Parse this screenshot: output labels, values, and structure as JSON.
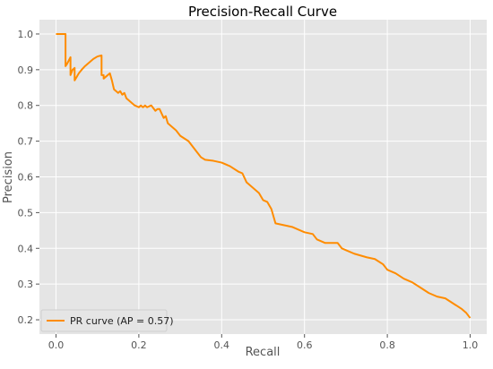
{
  "chart_data": {
    "type": "line",
    "title": "Precision-Recall Curve",
    "xlabel": "Recall",
    "ylabel": "Precision",
    "xlim": [
      -0.04,
      1.04
    ],
    "ylim": [
      0.16,
      1.04
    ],
    "xticks": [
      0.0,
      0.2,
      0.4,
      0.6,
      0.8,
      1.0
    ],
    "xtick_labels": [
      "0.0",
      "0.2",
      "0.4",
      "0.6",
      "0.8",
      "1.0"
    ],
    "yticks": [
      0.2,
      0.3,
      0.4,
      0.5,
      0.6,
      0.7,
      0.8,
      0.9,
      1.0
    ],
    "ytick_labels": [
      "0.2",
      "0.3",
      "0.4",
      "0.5",
      "0.6",
      "0.7",
      "0.8",
      "0.9",
      "1.0"
    ],
    "grid": true,
    "legend_position": "lower-left",
    "colors": {
      "series": "#ff8c00",
      "plot_background": "#e5e5e5",
      "grid": "#ffffff",
      "text": "#555555",
      "title": "#000000"
    },
    "series": [
      {
        "name": "PR curve (AP = 0.57)",
        "x": [
          0.0,
          0.023,
          0.023,
          0.026,
          0.035,
          0.035,
          0.04,
          0.045,
          0.045,
          0.05,
          0.055,
          0.062,
          0.07,
          0.08,
          0.09,
          0.1,
          0.11,
          0.11,
          0.115,
          0.115,
          0.12,
          0.13,
          0.135,
          0.14,
          0.145,
          0.15,
          0.155,
          0.16,
          0.165,
          0.17,
          0.175,
          0.18,
          0.19,
          0.2,
          0.205,
          0.21,
          0.215,
          0.22,
          0.23,
          0.24,
          0.245,
          0.25,
          0.26,
          0.265,
          0.27,
          0.28,
          0.29,
          0.3,
          0.32,
          0.33,
          0.34,
          0.35,
          0.36,
          0.38,
          0.4,
          0.42,
          0.44,
          0.45,
          0.46,
          0.47,
          0.48,
          0.49,
          0.5,
          0.51,
          0.52,
          0.53,
          0.55,
          0.57,
          0.6,
          0.62,
          0.63,
          0.65,
          0.68,
          0.69,
          0.7,
          0.72,
          0.75,
          0.77,
          0.79,
          0.8,
          0.82,
          0.84,
          0.85,
          0.86,
          0.88,
          0.9,
          0.92,
          0.94,
          0.96,
          0.98,
          0.99,
          1.0
        ],
        "y": [
          1.0,
          1.0,
          0.91,
          0.915,
          0.935,
          0.885,
          0.9,
          0.905,
          0.87,
          0.88,
          0.89,
          0.9,
          0.91,
          0.92,
          0.93,
          0.937,
          0.94,
          0.885,
          0.885,
          0.875,
          0.88,
          0.89,
          0.87,
          0.845,
          0.84,
          0.835,
          0.84,
          0.83,
          0.835,
          0.82,
          0.815,
          0.81,
          0.8,
          0.795,
          0.8,
          0.795,
          0.8,
          0.795,
          0.8,
          0.785,
          0.79,
          0.79,
          0.765,
          0.77,
          0.75,
          0.74,
          0.73,
          0.715,
          0.7,
          0.685,
          0.67,
          0.655,
          0.648,
          0.645,
          0.64,
          0.63,
          0.615,
          0.61,
          0.585,
          0.575,
          0.565,
          0.555,
          0.535,
          0.53,
          0.51,
          0.47,
          0.465,
          0.46,
          0.445,
          0.44,
          0.425,
          0.415,
          0.415,
          0.4,
          0.395,
          0.385,
          0.375,
          0.37,
          0.355,
          0.34,
          0.33,
          0.315,
          0.31,
          0.305,
          0.29,
          0.275,
          0.265,
          0.26,
          0.245,
          0.23,
          0.22,
          0.205
        ]
      }
    ]
  }
}
